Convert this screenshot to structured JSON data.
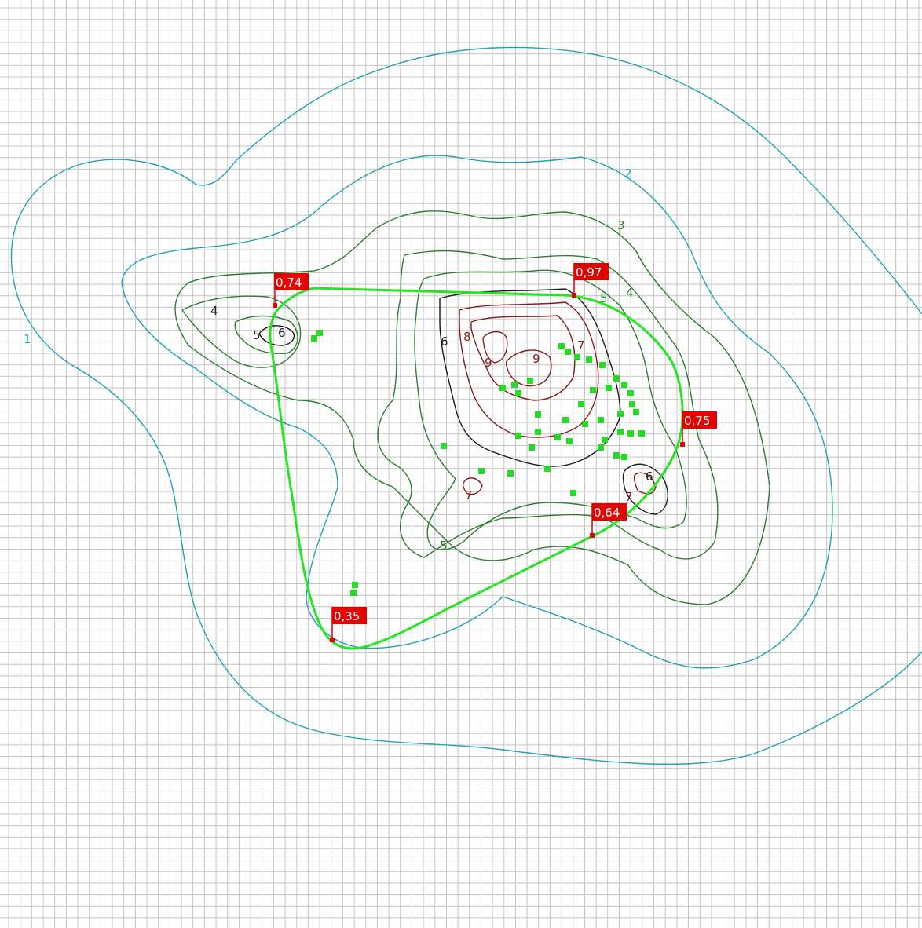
{
  "map": {
    "colors": {
      "grid": "#c4c4c4",
      "level_1_2": "#1ea3b3",
      "level_3_5": "#2f7d2f",
      "level_6": "#1a1a1a",
      "level_7_9": "#8b1a1a",
      "route": "#22e622",
      "marker": "#e60000",
      "points": "#22dd22"
    },
    "contour_labels": [
      "1",
      "2",
      "3",
      "4",
      "5",
      "6",
      "7",
      "8",
      "9"
    ],
    "markers": [
      {
        "id": "m074",
        "label": "0,74"
      },
      {
        "id": "m097",
        "label": "0,97"
      },
      {
        "id": "m075",
        "label": "0,75"
      },
      {
        "id": "m064",
        "label": "0,64"
      },
      {
        "id": "m035",
        "label": "0,35"
      }
    ]
  }
}
